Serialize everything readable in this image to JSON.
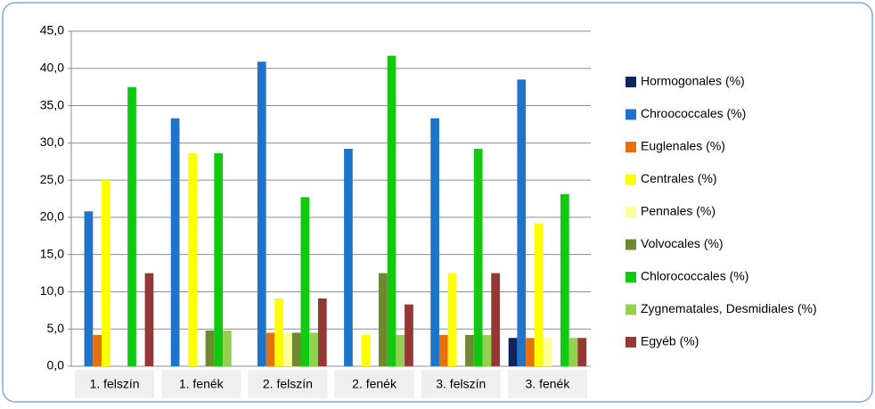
{
  "chart_data": {
    "type": "bar",
    "categories": [
      "1. felszín",
      "1. fenék",
      "2. felszín",
      "2. fenék",
      "3. felszín",
      "3. fenék"
    ],
    "series": [
      {
        "name": "Hormogonales (%)",
        "color": "#10245e",
        "values": [
          0,
          0,
          0,
          0,
          0,
          3.8
        ]
      },
      {
        "name": "Chroococcales (%)",
        "color": "#1f73c9",
        "values": [
          20.8,
          33.3,
          40.9,
          29.2,
          33.3,
          38.5
        ]
      },
      {
        "name": "Euglenales (%)",
        "color": "#e8700c",
        "values": [
          4.2,
          0,
          4.5,
          0,
          4.2,
          3.8
        ]
      },
      {
        "name": "Centrales (%)",
        "color": "#ffff00",
        "values": [
          25.0,
          28.6,
          9.1,
          4.2,
          12.5,
          19.2
        ]
      },
      {
        "name": "Pennales (%)",
        "color": "#ffff99",
        "values": [
          0,
          0,
          4.5,
          0,
          0,
          3.8
        ]
      },
      {
        "name": "Volvocales (%)",
        "color": "#6f8a2e",
        "values": [
          0,
          4.8,
          4.5,
          12.5,
          4.2,
          0
        ]
      },
      {
        "name": "Chlorococcales (%)",
        "color": "#12c912",
        "values": [
          37.5,
          28.6,
          22.7,
          41.7,
          29.2,
          23.1
        ]
      },
      {
        "name": "Zygnematales, Desmidiales (%)",
        "color": "#92d050",
        "values": [
          0,
          4.8,
          4.5,
          4.2,
          4.2,
          3.8
        ]
      },
      {
        "name": "Egyéb (%)",
        "color": "#953735",
        "values": [
          12.5,
          0,
          9.1,
          8.3,
          12.5,
          3.8
        ]
      }
    ],
    "ylim": [
      0,
      45
    ],
    "yticks": [
      {
        "value": 0,
        "label": "0,0"
      },
      {
        "value": 5,
        "label": "5,0"
      },
      {
        "value": 10,
        "label": "10,0"
      },
      {
        "value": 15,
        "label": "15,0"
      },
      {
        "value": 20,
        "label": "20,0"
      },
      {
        "value": 25,
        "label": "25,0"
      },
      {
        "value": 30,
        "label": "30,0"
      },
      {
        "value": 35,
        "label": "35,0"
      },
      {
        "value": 40,
        "label": "40,0"
      },
      {
        "value": 45,
        "label": "45,0"
      }
    ],
    "grid": true,
    "legend": "right"
  }
}
